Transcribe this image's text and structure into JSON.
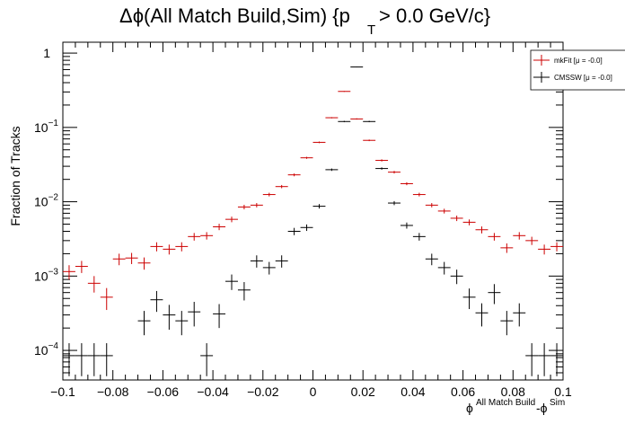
{
  "chart_data": {
    "type": "scatter",
    "title": {
      "main": "Δϕ(All Match Build,Sim) {p",
      "sub": "T",
      "tail": " > 0.0 GeV/c}"
    },
    "xlabel": {
      "phi1": "ϕ",
      "sup1": "All Match Build",
      "sep": "-ϕ",
      "sup2": "Sim"
    },
    "ylabel": "Fraction of Tracks",
    "xlim": [
      -0.1,
      0.1
    ],
    "ylim": [
      4e-05,
      1.4
    ],
    "y_scale": "log",
    "grid": false,
    "legend_position": "top-right",
    "x_ticks": [
      {
        "v": -0.1,
        "label": "−0.1"
      },
      {
        "v": -0.08,
        "label": "−0.08"
      },
      {
        "v": -0.06,
        "label": "−0.06"
      },
      {
        "v": -0.04,
        "label": "−0.04"
      },
      {
        "v": -0.02,
        "label": "−0.02"
      },
      {
        "v": 0.0,
        "label": "0"
      },
      {
        "v": 0.02,
        "label": "0.02"
      },
      {
        "v": 0.04,
        "label": "0.04"
      },
      {
        "v": 0.06,
        "label": "0.06"
      },
      {
        "v": 0.08,
        "label": "0.08"
      },
      {
        "v": 0.1,
        "label": "0.1"
      }
    ],
    "y_ticks": [
      {
        "v": 1,
        "base": "1",
        "exp": ""
      },
      {
        "v": 0.1,
        "base": "10",
        "exp": "−1"
      },
      {
        "v": 0.01,
        "base": "10",
        "exp": "−2"
      },
      {
        "v": 0.001,
        "base": "10",
        "exp": "−3"
      },
      {
        "v": 0.0001,
        "base": "10",
        "exp": "−4"
      }
    ],
    "bin_half_width": 0.0025,
    "series": [
      {
        "name": "mkFit  [μ = -0.0]",
        "color": "#cc0000",
        "points": [
          {
            "x": -0.0975,
            "y": 0.00115,
            "err": 0.00025
          },
          {
            "x": -0.0925,
            "y": 0.00135,
            "err": 0.00025
          },
          {
            "x": -0.0875,
            "y": 0.0008,
            "err": 0.0002
          },
          {
            "x": -0.0825,
            "y": 0.00052,
            "err": 0.00017
          },
          {
            "x": -0.0775,
            "y": 0.0017,
            "err": 0.0003
          },
          {
            "x": -0.0725,
            "y": 0.00175,
            "err": 0.0003
          },
          {
            "x": -0.0675,
            "y": 0.0015,
            "err": 0.00028
          },
          {
            "x": -0.0625,
            "y": 0.0025,
            "err": 0.00035
          },
          {
            "x": -0.0575,
            "y": 0.0023,
            "err": 0.00035
          },
          {
            "x": -0.0525,
            "y": 0.0025,
            "err": 0.00035
          },
          {
            "x": -0.0475,
            "y": 0.0034,
            "err": 0.0004
          },
          {
            "x": -0.0425,
            "y": 0.0035,
            "err": 0.0004
          },
          {
            "x": -0.0375,
            "y": 0.0046,
            "err": 0.00045
          },
          {
            "x": -0.0325,
            "y": 0.0058,
            "err": 0.0005
          },
          {
            "x": -0.0275,
            "y": 0.0085,
            "err": 0.0006
          },
          {
            "x": -0.0225,
            "y": 0.009,
            "err": 0.0006
          },
          {
            "x": -0.0175,
            "y": 0.0125,
            "err": 0.0007
          },
          {
            "x": -0.0125,
            "y": 0.016,
            "err": 0.0008
          },
          {
            "x": -0.0075,
            "y": 0.023,
            "err": 0.001
          },
          {
            "x": -0.0025,
            "y": 0.039,
            "err": 0.0012
          },
          {
            "x": 0.0025,
            "y": 0.063,
            "err": 0.0016
          },
          {
            "x": 0.0075,
            "y": 0.135,
            "err": 0.0025
          },
          {
            "x": 0.0125,
            "y": 0.305,
            "err": 0.004
          },
          {
            "x": 0.0175,
            "y": 0.13,
            "err": 0.0025
          },
          {
            "x": 0.0225,
            "y": 0.067,
            "err": 0.0016
          },
          {
            "x": 0.0275,
            "y": 0.036,
            "err": 0.0012
          },
          {
            "x": 0.0325,
            "y": 0.025,
            "err": 0.001
          },
          {
            "x": 0.0375,
            "y": 0.0175,
            "err": 0.0008
          },
          {
            "x": 0.0425,
            "y": 0.0125,
            "err": 0.0007
          },
          {
            "x": 0.0475,
            "y": 0.009,
            "err": 0.0006
          },
          {
            "x": 0.0525,
            "y": 0.0075,
            "err": 0.00055
          },
          {
            "x": 0.0575,
            "y": 0.006,
            "err": 0.0005
          },
          {
            "x": 0.0625,
            "y": 0.0053,
            "err": 0.00048
          },
          {
            "x": 0.0675,
            "y": 0.0042,
            "err": 0.00045
          },
          {
            "x": 0.0725,
            "y": 0.0034,
            "err": 0.0004
          },
          {
            "x": 0.0775,
            "y": 0.0024,
            "err": 0.00035
          },
          {
            "x": 0.0825,
            "y": 0.0035,
            "err": 0.0004
          },
          {
            "x": 0.0875,
            "y": 0.003,
            "err": 0.00038
          },
          {
            "x": 0.0925,
            "y": 0.0023,
            "err": 0.00035
          },
          {
            "x": 0.0975,
            "y": 0.0025,
            "err": 0.00035
          }
        ]
      },
      {
        "name": "CMSSW  [μ = -0.0]",
        "color": "#000000",
        "points": [
          {
            "x": -0.0975,
            "y": 8.5e-05,
            "err": 4e-05
          },
          {
            "x": -0.0925,
            "y": 8.5e-05,
            "err": 4e-05
          },
          {
            "x": -0.0875,
            "y": 8.5e-05,
            "err": 4e-05
          },
          {
            "x": -0.0825,
            "y": 8.5e-05,
            "err": 4e-05
          },
          {
            "x": -0.0675,
            "y": 0.00025,
            "err": 9e-05
          },
          {
            "x": -0.0625,
            "y": 0.00048,
            "err": 0.00015
          },
          {
            "x": -0.0575,
            "y": 0.0003,
            "err": 0.00011
          },
          {
            "x": -0.0525,
            "y": 0.00025,
            "err": 9e-05
          },
          {
            "x": -0.0475,
            "y": 0.00033,
            "err": 0.00012
          },
          {
            "x": -0.0425,
            "y": 8.5e-05,
            "err": 4e-05
          },
          {
            "x": -0.0375,
            "y": 0.00031,
            "err": 0.00011
          },
          {
            "x": -0.0325,
            "y": 0.00085,
            "err": 0.0002
          },
          {
            "x": -0.0275,
            "y": 0.00065,
            "err": 0.00018
          },
          {
            "x": -0.0225,
            "y": 0.0016,
            "err": 0.0003
          },
          {
            "x": -0.0175,
            "y": 0.0013,
            "err": 0.00025
          },
          {
            "x": -0.0125,
            "y": 0.0016,
            "err": 0.0003
          },
          {
            "x": -0.0075,
            "y": 0.004,
            "err": 0.00045
          },
          {
            "x": -0.0025,
            "y": 0.0045,
            "err": 0.00045
          },
          {
            "x": 0.0025,
            "y": 0.0087,
            "err": 0.0006
          },
          {
            "x": 0.0075,
            "y": 0.027,
            "err": 0.001
          },
          {
            "x": 0.0125,
            "y": 0.12,
            "err": 0.0025
          },
          {
            "x": 0.0175,
            "y": 0.65,
            "err": 0.006
          },
          {
            "x": 0.0225,
            "y": 0.12,
            "err": 0.0025
          },
          {
            "x": 0.0275,
            "y": 0.028,
            "err": 0.001
          },
          {
            "x": 0.0325,
            "y": 0.0096,
            "err": 0.0006
          },
          {
            "x": 0.0375,
            "y": 0.0048,
            "err": 0.00045
          },
          {
            "x": 0.0425,
            "y": 0.0034,
            "err": 0.0004
          },
          {
            "x": 0.0475,
            "y": 0.0017,
            "err": 0.0003
          },
          {
            "x": 0.0525,
            "y": 0.0013,
            "err": 0.00025
          },
          {
            "x": 0.0575,
            "y": 0.001,
            "err": 0.00022
          },
          {
            "x": 0.0625,
            "y": 0.00052,
            "err": 0.00016
          },
          {
            "x": 0.0675,
            "y": 0.00032,
            "err": 0.00011
          },
          {
            "x": 0.0725,
            "y": 0.0006,
            "err": 0.00018
          },
          {
            "x": 0.0775,
            "y": 0.00025,
            "err": 9e-05
          },
          {
            "x": 0.0825,
            "y": 0.00032,
            "err": 0.00011
          },
          {
            "x": 0.0875,
            "y": 8.5e-05,
            "err": 4e-05
          },
          {
            "x": 0.0925,
            "y": 8.5e-05,
            "err": 4e-05
          },
          {
            "x": 0.0975,
            "y": 8.5e-05,
            "err": 4e-05
          }
        ]
      }
    ]
  }
}
